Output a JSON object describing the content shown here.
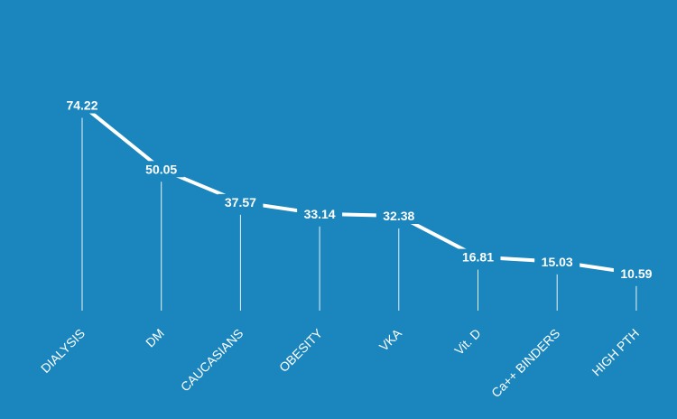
{
  "colors": {
    "background": "#1a86bd",
    "line": "#ffffff",
    "drop_lines": "#ffffff",
    "text": "#ffffff"
  },
  "chart_data": {
    "type": "line",
    "title": "",
    "xlabel": "",
    "ylabel": "",
    "ylim": [
      0,
      80
    ],
    "grid": false,
    "legend": "none",
    "categories": [
      "DIALYSIS",
      "DM",
      "CAUCASIANS",
      "OBESITY",
      "VKA",
      "Vit. D",
      "Ca++ BINDERS",
      "HIGH PTH"
    ],
    "values": [
      74.22,
      50.05,
      37.57,
      33.14,
      32.38,
      16.81,
      15.03,
      10.59
    ],
    "value_labels": [
      "74.22",
      "50.05",
      "37.57",
      "33.14",
      "32.38",
      "16.81",
      "15.03",
      "10.59"
    ]
  }
}
